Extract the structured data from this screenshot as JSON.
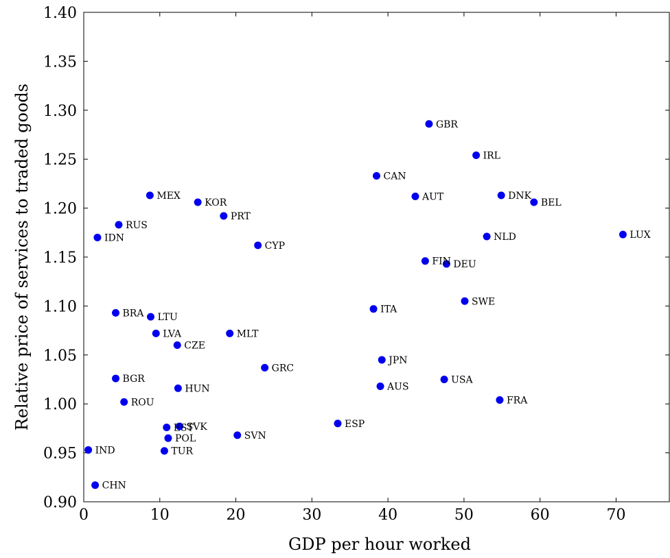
{
  "chart_data": {
    "type": "scatter",
    "title": "",
    "xlabel": "GDP per hour worked",
    "ylabel": "Relative price of services to traded goods",
    "xlim": [
      0,
      77
    ],
    "ylim": [
      0.9,
      1.4
    ],
    "xticks": [
      "0",
      "10",
      "20",
      "30",
      "40",
      "50",
      "60",
      "70"
    ],
    "yticks": [
      "0.90",
      "0.95",
      "1.00",
      "1.05",
      "1.10",
      "1.15",
      "1.20",
      "1.25",
      "1.30",
      "1.35",
      "1.40"
    ],
    "point_color": "#0000ee",
    "grid": false,
    "points": [
      {
        "label": "GBR",
        "x": 45.4,
        "y": 1.286
      },
      {
        "label": "IRL",
        "x": 51.6,
        "y": 1.254
      },
      {
        "label": "CAN",
        "x": 38.5,
        "y": 1.233
      },
      {
        "label": "AUT",
        "x": 43.6,
        "y": 1.212
      },
      {
        "label": "DNK",
        "x": 54.9,
        "y": 1.213
      },
      {
        "label": "BEL",
        "x": 59.2,
        "y": 1.206
      },
      {
        "label": "NLD",
        "x": 53.0,
        "y": 1.171
      },
      {
        "label": "LUX",
        "x": 70.9,
        "y": 1.173
      },
      {
        "label": "FIN",
        "x": 44.9,
        "y": 1.146
      },
      {
        "label": "DEU",
        "x": 47.7,
        "y": 1.143
      },
      {
        "label": "SWE",
        "x": 50.1,
        "y": 1.105
      },
      {
        "label": "ITA",
        "x": 38.1,
        "y": 1.097
      },
      {
        "label": "JPN",
        "x": 39.2,
        "y": 1.045
      },
      {
        "label": "AUS",
        "x": 39.0,
        "y": 1.018
      },
      {
        "label": "USA",
        "x": 47.4,
        "y": 1.025
      },
      {
        "label": "FRA",
        "x": 54.7,
        "y": 1.004
      },
      {
        "label": "ESP",
        "x": 33.4,
        "y": 0.98
      },
      {
        "label": "MEX",
        "x": 8.7,
        "y": 1.213
      },
      {
        "label": "KOR",
        "x": 15.0,
        "y": 1.206
      },
      {
        "label": "PRT",
        "x": 18.4,
        "y": 1.192
      },
      {
        "label": "RUS",
        "x": 4.6,
        "y": 1.183
      },
      {
        "label": "IDN",
        "x": 1.8,
        "y": 1.17
      },
      {
        "label": "CYP",
        "x": 22.9,
        "y": 1.162
      },
      {
        "label": "BRA",
        "x": 4.2,
        "y": 1.093
      },
      {
        "label": "LTU",
        "x": 8.8,
        "y": 1.089
      },
      {
        "label": "LVA",
        "x": 9.5,
        "y": 1.072
      },
      {
        "label": "MLT",
        "x": 19.2,
        "y": 1.072
      },
      {
        "label": "CZE",
        "x": 12.3,
        "y": 1.06
      },
      {
        "label": "GRC",
        "x": 23.8,
        "y": 1.037
      },
      {
        "label": "BGR",
        "x": 4.2,
        "y": 1.026
      },
      {
        "label": "HUN",
        "x": 12.4,
        "y": 1.016
      },
      {
        "label": "ROU",
        "x": 5.3,
        "y": 1.002
      },
      {
        "label": "EST",
        "x": 10.9,
        "y": 0.976
      },
      {
        "label": "SVK",
        "x": 12.6,
        "y": 0.977
      },
      {
        "label": "POL",
        "x": 11.1,
        "y": 0.965
      },
      {
        "label": "SVN",
        "x": 20.2,
        "y": 0.968
      },
      {
        "label": "TUR",
        "x": 10.6,
        "y": 0.952
      },
      {
        "label": "IND",
        "x": 0.6,
        "y": 0.953
      },
      {
        "label": "CHN",
        "x": 1.5,
        "y": 0.917
      }
    ]
  }
}
